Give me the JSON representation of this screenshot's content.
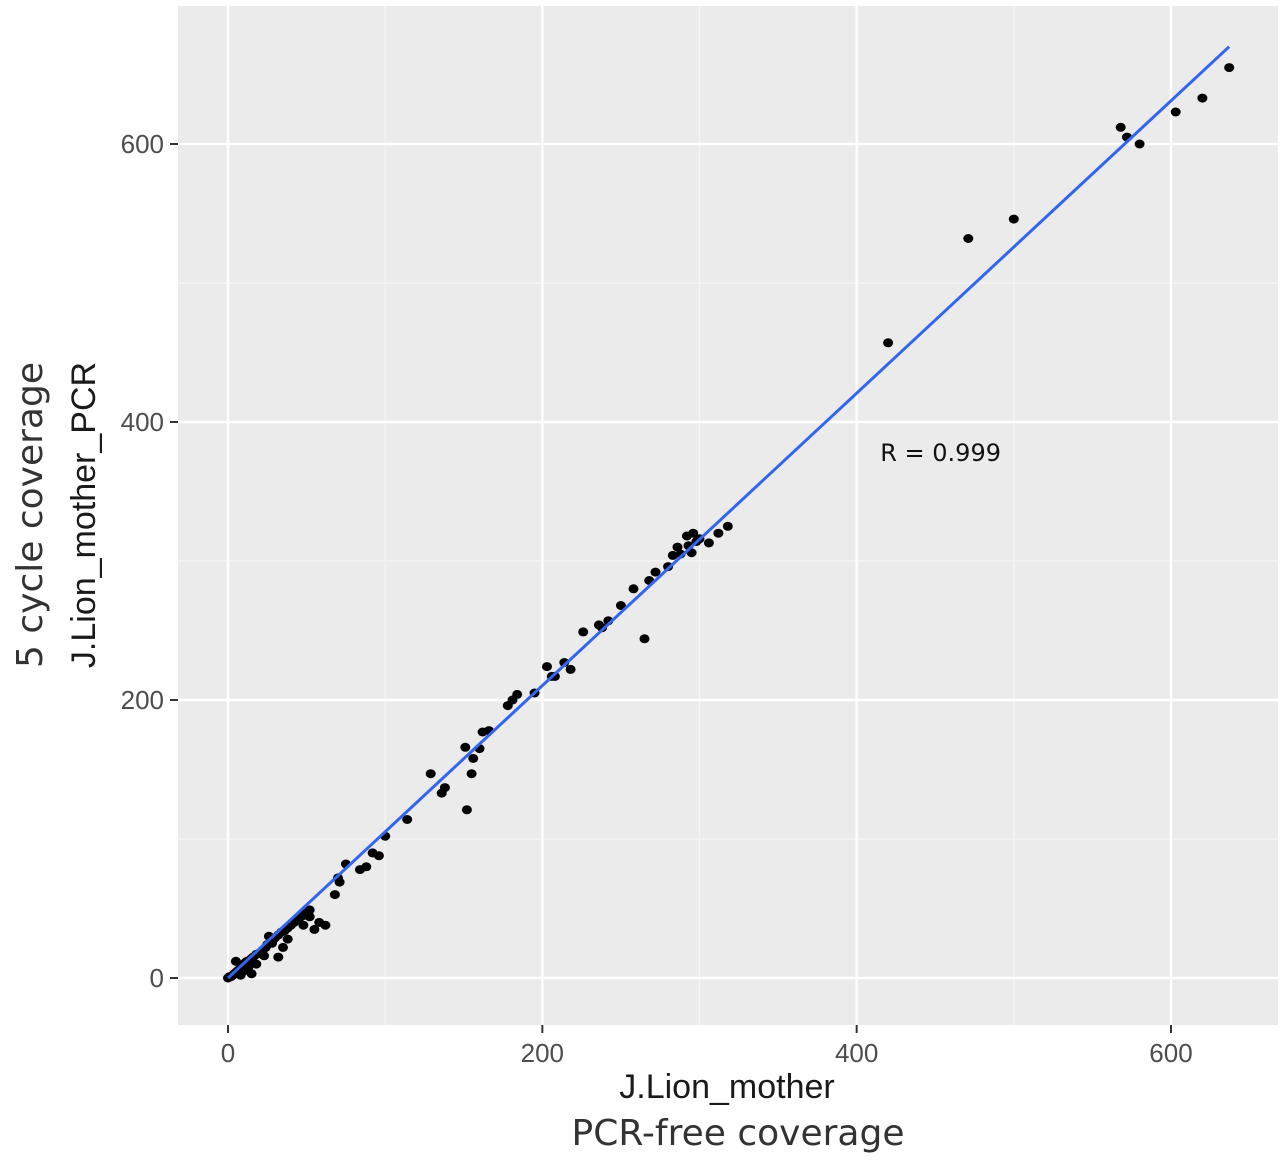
{
  "chart_data": {
    "type": "scatter",
    "title": "",
    "xlabel": "J.Lion_mother",
    "xlabel_sub": "PCR-free coverage",
    "ylabel": "J.Lion_mother_PCR",
    "ylabel_sub": "5 cycle coverage",
    "xlim": [
      -35,
      670
    ],
    "ylim": [
      -35,
      700
    ],
    "x_ticks": [
      0,
      200,
      400,
      600
    ],
    "y_ticks": [
      0,
      200,
      400,
      600
    ],
    "x_tick_labels": [
      "0",
      "200",
      "400",
      "600"
    ],
    "y_tick_labels": [
      "0",
      "200",
      "400",
      "600"
    ],
    "grid": true,
    "legend": "none",
    "annotation": {
      "text": "R = 0.999",
      "x": 415,
      "y": 372
    },
    "fit_line": {
      "x": [
        0,
        637
      ],
      "y": [
        0,
        670
      ]
    },
    "points": [
      [
        0,
        0
      ],
      [
        1,
        1
      ],
      [
        2,
        1
      ],
      [
        3,
        2
      ],
      [
        4,
        3
      ],
      [
        5,
        4
      ],
      [
        6,
        5
      ],
      [
        7,
        6
      ],
      [
        8,
        7
      ],
      [
        9,
        9
      ],
      [
        10,
        10
      ],
      [
        11,
        11
      ],
      [
        12,
        12
      ],
      [
        14,
        13
      ],
      [
        15,
        14
      ],
      [
        16,
        15
      ],
      [
        18,
        17
      ],
      [
        20,
        18
      ],
      [
        22,
        20
      ],
      [
        24,
        22
      ],
      [
        25,
        24
      ],
      [
        27,
        26
      ],
      [
        29,
        28
      ],
      [
        30,
        29
      ],
      [
        32,
        31
      ],
      [
        34,
        33
      ],
      [
        36,
        34
      ],
      [
        38,
        36
      ],
      [
        40,
        38
      ],
      [
        42,
        40
      ],
      [
        44,
        42
      ],
      [
        46,
        44
      ],
      [
        48,
        45
      ],
      [
        50,
        47
      ],
      [
        52,
        49
      ],
      [
        5,
        12
      ],
      [
        8,
        2
      ],
      [
        10,
        5
      ],
      [
        13,
        8
      ],
      [
        15,
        3
      ],
      [
        18,
        10
      ],
      [
        23,
        16
      ],
      [
        26,
        30
      ],
      [
        28,
        25
      ],
      [
        32,
        15
      ],
      [
        35,
        22
      ],
      [
        38,
        28
      ],
      [
        45,
        42
      ],
      [
        48,
        38
      ],
      [
        52,
        44
      ],
      [
        55,
        35
      ],
      [
        58,
        40
      ],
      [
        62,
        38
      ],
      [
        68,
        60
      ],
      [
        70,
        72
      ],
      [
        71,
        69
      ],
      [
        75,
        82
      ],
      [
        84,
        78
      ],
      [
        88,
        80
      ],
      [
        92,
        90
      ],
      [
        96,
        88
      ],
      [
        100,
        102
      ],
      [
        114,
        114
      ],
      [
        129,
        147
      ],
      [
        136,
        133
      ],
      [
        138,
        137
      ],
      [
        151,
        166
      ],
      [
        152,
        121
      ],
      [
        155,
        147
      ],
      [
        156,
        158
      ],
      [
        160,
        165
      ],
      [
        162,
        177
      ],
      [
        166,
        178
      ],
      [
        178,
        196
      ],
      [
        181,
        200
      ],
      [
        184,
        204
      ],
      [
        195,
        205
      ],
      [
        203,
        224
      ],
      [
        206,
        217
      ],
      [
        208,
        217
      ],
      [
        214,
        227
      ],
      [
        218,
        222
      ],
      [
        226,
        249
      ],
      [
        236,
        254
      ],
      [
        238,
        252
      ],
      [
        242,
        257
      ],
      [
        250,
        268
      ],
      [
        258,
        280
      ],
      [
        265,
        244
      ],
      [
        268,
        286
      ],
      [
        272,
        292
      ],
      [
        280,
        296
      ],
      [
        283,
        304
      ],
      [
        286,
        310
      ],
      [
        288,
        305
      ],
      [
        292,
        318
      ],
      [
        293,
        311
      ],
      [
        295,
        306
      ],
      [
        296,
        320
      ],
      [
        298,
        314
      ],
      [
        300,
        316
      ],
      [
        306,
        313
      ],
      [
        312,
        320
      ],
      [
        318,
        325
      ],
      [
        420,
        457
      ],
      [
        471,
        532
      ],
      [
        500,
        546
      ],
      [
        568,
        612
      ],
      [
        572,
        605
      ],
      [
        580,
        600
      ],
      [
        603,
        623
      ],
      [
        620,
        633
      ],
      [
        637,
        655
      ]
    ],
    "colors": {
      "panel_bg": "#ebebeb",
      "grid_major": "#ffffff",
      "grid_minor": "#f5f5f5",
      "point": "#000000",
      "line": "#3366ee"
    }
  }
}
